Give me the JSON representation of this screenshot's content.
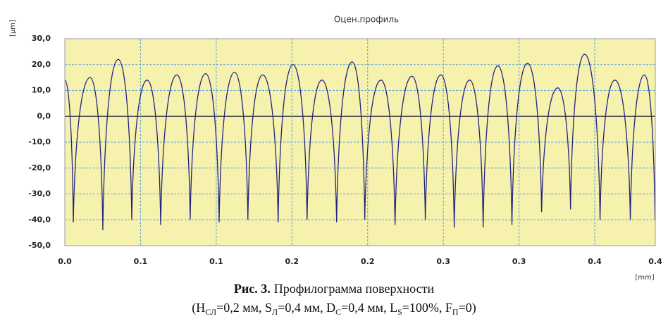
{
  "chart_data": {
    "type": "line",
    "title": "Оцен.профиль",
    "y_label": "[µm]",
    "x_label": "[mm]",
    "x": [
      0,
      0.0056,
      0.0167,
      0.0251,
      0.0353,
      0.0442,
      0.0544,
      0.0633,
      0.074,
      0.0828,
      0.093,
      0.1019,
      0.1121,
      0.1209,
      0.1307,
      0.1409,
      0.1507,
      0.16,
      0.1698,
      0.1795,
      0.1898,
      0.1981,
      0.2088,
      0.2181,
      0.2293,
      0.2381,
      0.2484,
      0.2572,
      0.2674,
      0.2763,
      0.286,
      0.2953,
      0.3056,
      0.3149,
      0.3256,
      0.334,
      0.3433,
      0.3535,
      0.3633,
      0.3735,
      0.3828,
      0.3898
    ],
    "series": [
      {
        "color": "#23237e",
        "values": [
          14,
          -41,
          15,
          -44,
          22,
          -40,
          14,
          -42,
          16,
          -40,
          16.5,
          -41,
          17,
          -40,
          16,
          -41,
          20,
          -40,
          14,
          -41,
          21,
          -40,
          14,
          -42,
          15.5,
          -40,
          16,
          -43,
          14,
          -43,
          19.5,
          -42,
          20.5,
          -37,
          11,
          -36,
          24,
          -40,
          14,
          -40,
          16,
          -40
        ]
      }
    ],
    "xlim": [
      0,
      0.39
    ],
    "xticks": [
      {
        "value": 0,
        "label": "0.0"
      },
      {
        "value": 0.05,
        "label": "0.1"
      },
      {
        "value": 0.1,
        "label": "0.1"
      },
      {
        "value": 0.15,
        "label": "0.2"
      },
      {
        "value": 0.2,
        "label": "0.2"
      },
      {
        "value": 0.25,
        "label": "0.3"
      },
      {
        "value": 0.3,
        "label": "0.3"
      },
      {
        "value": 0.35,
        "label": "0.4"
      },
      {
        "value": 0.39,
        "label": "0.4"
      }
    ],
    "ylim": [
      -50,
      30
    ],
    "yticks": [
      {
        "value": 30,
        "label": "30,0"
      },
      {
        "value": 20,
        "label": "20,0"
      },
      {
        "value": 10,
        "label": "10,0"
      },
      {
        "value": 0,
        "label": "0,0"
      },
      {
        "value": -10,
        "label": "-10,0"
      },
      {
        "value": -20,
        "label": "-20,0"
      },
      {
        "value": -30,
        "label": "-30,0"
      },
      {
        "value": -40,
        "label": "-40,0"
      },
      {
        "value": -50,
        "label": "-50,0"
      }
    ],
    "grid": true
  },
  "caption": {
    "label": "Рис. 3.",
    "text": "Профилограмма поверхности",
    "params": [
      "(H",
      "СЛ",
      "=0,2 мм, S",
      "Л",
      "=0,4 мм, D",
      "С",
      "=0,4 мм, L",
      "S",
      "=100%, F",
      "П",
      "=0)"
    ]
  }
}
